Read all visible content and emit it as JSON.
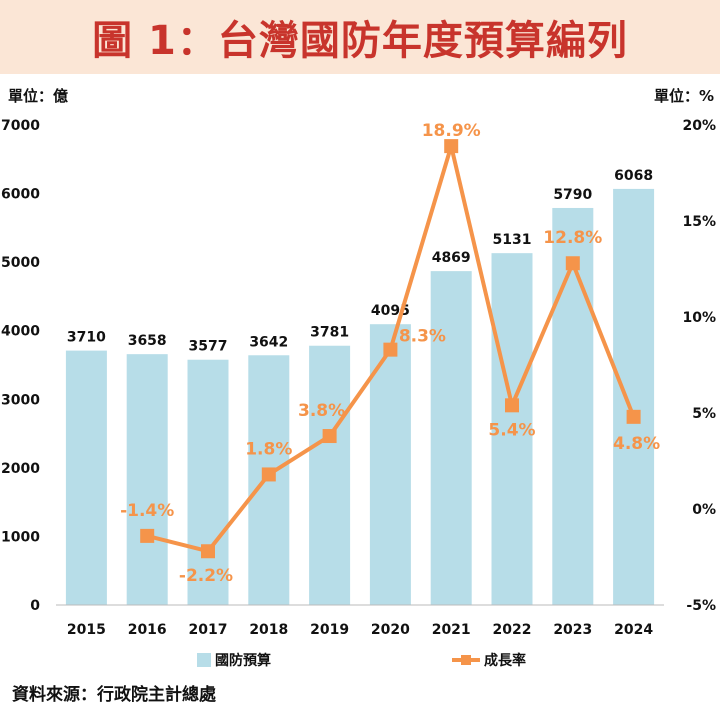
{
  "title": "圖 1：台灣國防年度預算編列",
  "unit_left": "單位：億",
  "unit_right": "單位：%",
  "source": "資料來源：行政院主計總處",
  "chart_data": {
    "type": "bar",
    "categories": [
      "2015",
      "2016",
      "2017",
      "2018",
      "2019",
      "2020",
      "2021",
      "2022",
      "2023",
      "2024"
    ],
    "series": [
      {
        "name": "國防預算",
        "type": "bar",
        "axis": "left",
        "color": "#b7dde8",
        "values": [
          3710,
          3658,
          3577,
          3642,
          3781,
          4095,
          4869,
          5131,
          5790,
          6068
        ],
        "labels": [
          "3710",
          "3658",
          "3577",
          "3642",
          "3781",
          "4095",
          "4869",
          "5131",
          "5790",
          "6068"
        ]
      },
      {
        "name": "成長率",
        "type": "line",
        "axis": "right",
        "color": "#f5944a",
        "values": [
          null,
          -1.4,
          -2.2,
          1.8,
          3.8,
          8.3,
          18.9,
          5.4,
          12.8,
          4.8
        ],
        "labels": [
          "",
          "-1.4%",
          "-2.2%",
          "1.8%",
          "3.8%",
          "8.3%",
          "18.9%",
          "5.4%",
          "12.8%",
          "4.8%"
        ]
      }
    ],
    "y_left": {
      "min": 0,
      "max": 7000,
      "ticks": [
        "0",
        "1000",
        "2000",
        "3000",
        "4000",
        "5000",
        "6000",
        "7000"
      ]
    },
    "y_right": {
      "min": -5,
      "max": 20,
      "ticks": [
        "-5%",
        "0%",
        "5%",
        "10%",
        "15%",
        "20%"
      ]
    },
    "legend": {
      "placement": "bottom"
    },
    "grid": false
  }
}
